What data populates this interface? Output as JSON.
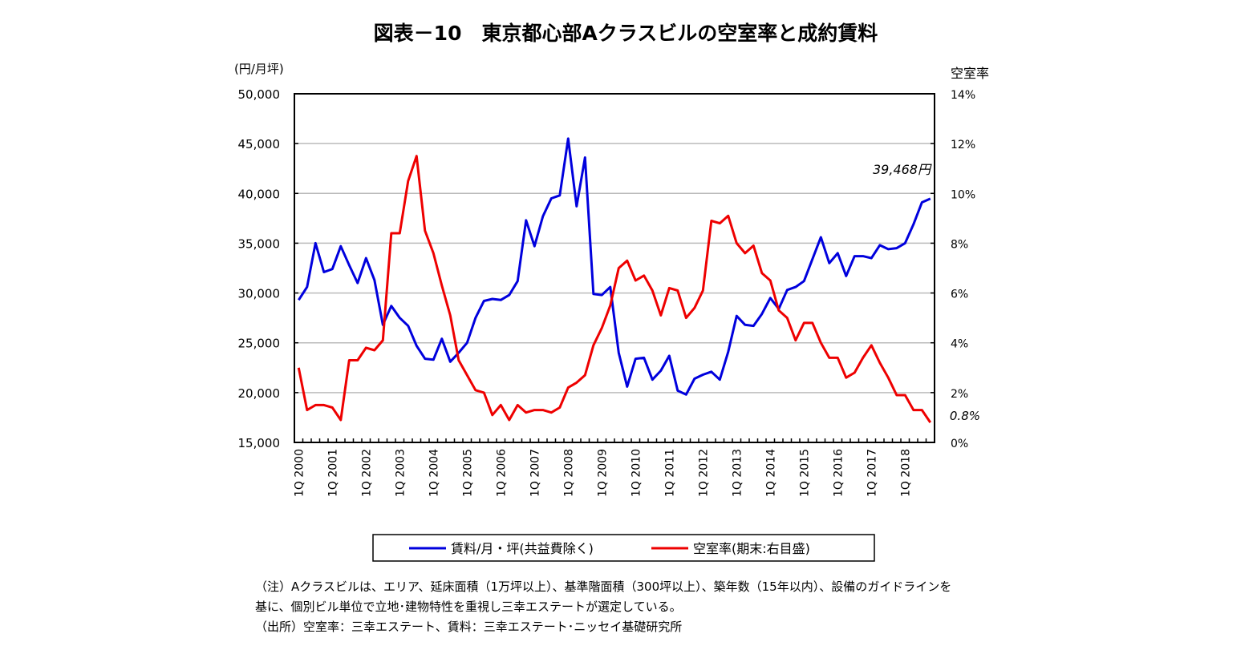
{
  "chart_data": {
    "type": "line",
    "title": "図表－10　東京都心部Aクラスビルの空室率と成約賃料",
    "y_left_label": "(円/月坪)",
    "y_right_label": "空室率",
    "y_left_lim": [
      15000,
      50000
    ],
    "y_left_ticks": [
      "15,000",
      "20,000",
      "25,000",
      "30,000",
      "35,000",
      "40,000",
      "45,000",
      "50,000"
    ],
    "y_right_lim": [
      0,
      14
    ],
    "y_right_ticks": [
      "0%",
      "2%",
      "4%",
      "6%",
      "8%",
      "10%",
      "12%",
      "14%"
    ],
    "x_tick_labels": [
      "1Q 2000",
      "1Q 2001",
      "1Q 2002",
      "1Q 2003",
      "1Q 2004",
      "1Q 2005",
      "1Q 2006",
      "1Q 2007",
      "1Q 2008",
      "1Q 2009",
      "1Q 2010",
      "1Q 2011",
      "1Q 2012",
      "1Q 2013",
      "1Q 2014",
      "1Q 2015",
      "1Q 2016",
      "1Q 2017",
      "1Q 2018"
    ],
    "grid": true,
    "legend_position": "bottom",
    "series": [
      {
        "name": "賃料/月・坪(共益費除く)",
        "axis": "left",
        "color": "#0000dd",
        "values": [
          29300,
          30600,
          35000,
          32100,
          32400,
          34700,
          32800,
          31000,
          33500,
          31300,
          26800,
          28700,
          27500,
          26700,
          24700,
          23400,
          23300,
          25400,
          23100,
          24000,
          25000,
          27500,
          29200,
          29400,
          29300,
          29800,
          31200,
          37300,
          34700,
          37700,
          39500,
          39800,
          45500,
          38700,
          43600,
          29900,
          29800,
          30600,
          24000,
          20600,
          23400,
          23500,
          21300,
          22200,
          23700,
          20200,
          19800,
          21400,
          21800,
          22100,
          21300,
          24100,
          27700,
          26800,
          26700,
          27900,
          29500,
          28400,
          30300,
          30600,
          31200,
          33400,
          35600,
          33000,
          34000,
          31700,
          33700,
          33700,
          33500,
          34800,
          34400,
          34500,
          35000,
          36900,
          39100,
          39468
        ]
      },
      {
        "name": "空室率(期末:右目盛)",
        "axis": "right",
        "color": "#ee0000",
        "values": [
          3.0,
          1.3,
          1.5,
          1.5,
          1.4,
          0.9,
          3.3,
          3.3,
          3.8,
          3.7,
          4.1,
          8.4,
          8.4,
          10.5,
          11.5,
          8.5,
          7.6,
          6.3,
          5.1,
          3.3,
          2.7,
          2.1,
          2.0,
          1.1,
          1.5,
          0.9,
          1.5,
          1.2,
          1.3,
          1.3,
          1.2,
          1.4,
          2.2,
          2.4,
          2.7,
          3.9,
          4.6,
          5.5,
          7.0,
          7.3,
          6.5,
          6.7,
          6.1,
          5.1,
          6.2,
          6.1,
          5.0,
          5.4,
          6.1,
          8.9,
          8.8,
          9.1,
          8.0,
          7.6,
          7.9,
          6.8,
          6.5,
          5.3,
          5.0,
          4.1,
          4.8,
          4.8,
          4.0,
          3.4,
          3.4,
          2.6,
          2.8,
          3.4,
          3.9,
          3.2,
          2.6,
          1.9,
          1.9,
          1.3,
          1.3,
          0.8
        ]
      }
    ],
    "annotations": [
      "39,468円",
      "0.8%"
    ]
  },
  "notes": [
    "（注）Aクラスビルは、エリア、延床面積（1万坪以上）、基準階面積（300坪以上）、築年数（15年以内）、設備のガイドラインを",
    "基に、個別ビル単位で立地･建物特性を重視し三幸エステートが選定している。",
    "（出所）空室率：三幸エステート、賃料：三幸エステート･ニッセイ基礎研究所"
  ]
}
